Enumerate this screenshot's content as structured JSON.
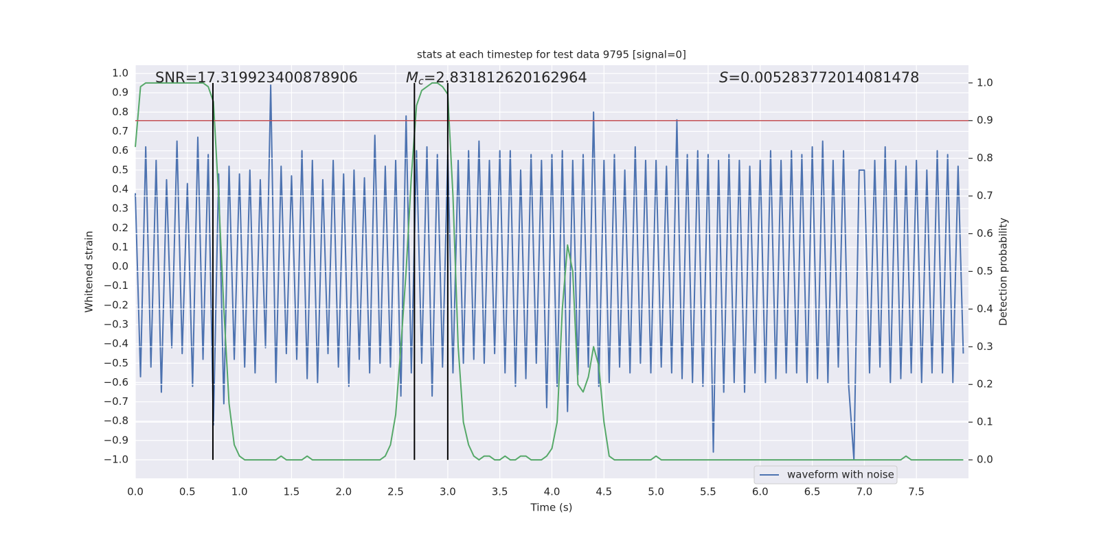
{
  "chart_data": {
    "type": "line",
    "title": "stats at each timestep for test data 9795 [signal=0]",
    "xlabel": "Time (s)",
    "ylabel": "Whitened strain",
    "y2label": "Detection probability",
    "annotations": [
      {
        "text": "SNR=17.319923400878906"
      },
      {
        "symbol": "M",
        "subscript": "c",
        "text": "=2.831812620162964"
      },
      {
        "symbol": "S",
        "text": "=0.005283772014081478"
      }
    ],
    "x": [
      0,
      0.05,
      0.1,
      0.15,
      0.2,
      0.25,
      0.3,
      0.35,
      0.4,
      0.45,
      0.5,
      0.55,
      0.6,
      0.65,
      0.7,
      0.75,
      0.8,
      0.85,
      0.9,
      0.95,
      1.0,
      1.05,
      1.1,
      1.15,
      1.2,
      1.25,
      1.3,
      1.35,
      1.4,
      1.45,
      1.5,
      1.55,
      1.6,
      1.65,
      1.7,
      1.75,
      1.8,
      1.85,
      1.9,
      1.95,
      2.0,
      2.05,
      2.1,
      2.15,
      2.2,
      2.25,
      2.3,
      2.35,
      2.4,
      2.45,
      2.5,
      2.55,
      2.6,
      2.65,
      2.7,
      2.75,
      2.8,
      2.85,
      2.9,
      2.95,
      3.0,
      3.05,
      3.1,
      3.15,
      3.2,
      3.25,
      3.3,
      3.35,
      3.4,
      3.45,
      3.5,
      3.55,
      3.6,
      3.65,
      3.7,
      3.75,
      3.8,
      3.85,
      3.9,
      3.95,
      4.0,
      4.05,
      4.1,
      4.15,
      4.2,
      4.25,
      4.3,
      4.35,
      4.4,
      4.45,
      4.5,
      4.55,
      4.6,
      4.65,
      4.7,
      4.75,
      4.8,
      4.85,
      4.9,
      4.95,
      5.0,
      5.05,
      5.1,
      5.15,
      5.2,
      5.25,
      5.3,
      5.35,
      5.4,
      5.45,
      5.5,
      5.55,
      5.6,
      5.65,
      5.7,
      5.75,
      5.8,
      5.85,
      5.9,
      5.95,
      6.0,
      6.05,
      6.1,
      6.15,
      6.2,
      6.25,
      6.3,
      6.35,
      6.4,
      6.45,
      6.5,
      6.55,
      6.6,
      6.65,
      6.7,
      6.75,
      6.8,
      6.85,
      6.9,
      6.95,
      7.0,
      7.05,
      7.1,
      7.15,
      7.2,
      7.25,
      7.3,
      7.35,
      7.4,
      7.45,
      7.5,
      7.55,
      7.6,
      7.65,
      7.7,
      7.75,
      7.8,
      7.85,
      7.9,
      7.95
    ],
    "series": [
      {
        "name": "waveform with noise",
        "color": "#4c72b0",
        "values": [
          0.38,
          -0.57,
          0.62,
          -0.52,
          0.55,
          -0.65,
          0.45,
          -0.42,
          0.65,
          -0.45,
          0.43,
          -0.62,
          0.67,
          -0.48,
          0.58,
          -0.82,
          0.48,
          -0.71,
          0.52,
          -0.48,
          0.48,
          -0.52,
          0.5,
          -0.55,
          0.45,
          -0.42,
          0.94,
          -0.6,
          0.52,
          -0.45,
          0.47,
          -0.48,
          0.6,
          -0.58,
          0.55,
          -0.6,
          0.45,
          -0.45,
          0.55,
          -0.52,
          0.48,
          -0.62,
          0.5,
          -0.48,
          0.46,
          -0.55,
          0.68,
          -0.5,
          0.52,
          -0.52,
          0.55,
          -0.67,
          0.78,
          -0.55,
          0.6,
          -0.5,
          0.62,
          -0.67,
          0.58,
          -0.52,
          0.58,
          -0.55,
          0.55,
          -0.5,
          0.6,
          -0.48,
          0.65,
          -0.5,
          0.55,
          -0.45,
          0.6,
          -0.55,
          0.6,
          -0.62,
          0.5,
          -0.58,
          0.58,
          -0.5,
          0.55,
          -0.73,
          0.58,
          -0.62,
          0.6,
          -0.75,
          0.55,
          -0.56,
          0.58,
          -0.52,
          0.8,
          -0.62,
          0.55,
          -0.6,
          0.58,
          -0.52,
          0.5,
          -0.55,
          0.62,
          -0.5,
          0.55,
          -0.55,
          0.55,
          -0.52,
          0.52,
          -0.55,
          0.76,
          -0.58,
          0.58,
          -0.6,
          0.6,
          -0.62,
          0.58,
          -0.96,
          0.55,
          -0.65,
          0.58,
          -0.6,
          0.55,
          -0.65,
          0.52,
          -0.55,
          0.55,
          -0.6,
          0.6,
          -0.58,
          0.55,
          -0.55,
          0.6,
          -0.55,
          0.58,
          -0.6,
          0.62,
          -0.58,
          0.65,
          -0.6,
          0.55,
          -0.52,
          0.6,
          -0.62,
          -1.0,
          0.5,
          0.5,
          -0.55,
          0.55,
          -0.52,
          0.62,
          -0.6,
          0.55,
          -0.58,
          0.52,
          -0.55,
          0.55,
          -0.6,
          0.5,
          -0.55,
          0.6,
          -0.55,
          0.58,
          -0.6,
          0.52,
          -0.45
        ]
      },
      {
        "color": "#55a868",
        "axis": "y2",
        "values": [
          0.83,
          0.99,
          1.0,
          1.0,
          1.0,
          1.0,
          1.0,
          1.0,
          1.0,
          1.0,
          1.0,
          1.0,
          1.0,
          1.0,
          0.99,
          0.95,
          0.7,
          0.4,
          0.15,
          0.04,
          0.01,
          0.0,
          0.0,
          0.0,
          0.0,
          0.0,
          0.0,
          0.0,
          0.01,
          0.0,
          0.0,
          0.0,
          0.0,
          0.01,
          0.0,
          0.0,
          0.0,
          0.0,
          0.0,
          0.0,
          0.0,
          0.0,
          0.0,
          0.0,
          0.0,
          0.0,
          0.0,
          0.0,
          0.01,
          0.04,
          0.12,
          0.3,
          0.5,
          0.75,
          0.94,
          0.98,
          0.99,
          1.0,
          1.0,
          0.99,
          0.97,
          0.7,
          0.3,
          0.1,
          0.04,
          0.01,
          0.0,
          0.01,
          0.01,
          0.0,
          0.0,
          0.01,
          0.0,
          0.0,
          0.01,
          0.01,
          0.0,
          0.0,
          0.0,
          0.01,
          0.03,
          0.1,
          0.4,
          0.57,
          0.5,
          0.2,
          0.18,
          0.22,
          0.3,
          0.25,
          0.1,
          0.01,
          0.0,
          0.0,
          0.0,
          0.0,
          0.0,
          0.0,
          0.0,
          0.0,
          0.01,
          0.0,
          0.0,
          0.0,
          0.0,
          0.0,
          0.0,
          0.0,
          0.0,
          0.0,
          0.0,
          0.0,
          0.0,
          0.0,
          0.0,
          0.0,
          0.0,
          0.0,
          0.0,
          0.0,
          0.0,
          0.0,
          0.0,
          0.0,
          0.0,
          0.0,
          0.0,
          0.0,
          0.0,
          0.0,
          0.0,
          0.0,
          0.0,
          0.0,
          0.0,
          0.0,
          0.0,
          0.0,
          0.0,
          0.0,
          0.0,
          0.0,
          0.0,
          0.0,
          0.0,
          0.0,
          0.0,
          0.0,
          0.01,
          0.0,
          0.0,
          0.0,
          0.0,
          0.0,
          0.0,
          0.0,
          0.0,
          0.0,
          0.0,
          0.0
        ]
      }
    ],
    "threshold": {
      "y": 0.9,
      "axis": "y2",
      "color": "#c44e52"
    },
    "vlines": {
      "x": [
        0.745,
        2.68,
        3.0
      ],
      "ymin": 0,
      "ymax": 1,
      "axis": "y2",
      "color": "#000000"
    },
    "xlim": [
      0,
      8.0
    ],
    "xticks": [
      {
        "value": 0,
        "label": "0.0"
      },
      0.5,
      {
        "value": 1,
        "label": "1.0"
      },
      1.5,
      {
        "value": 2,
        "label": "2.0"
      },
      2.5,
      {
        "value": 3,
        "label": "3.0"
      },
      3.5,
      {
        "value": 4,
        "label": "4.0"
      },
      4.5,
      {
        "value": 5,
        "label": "5.0"
      },
      5.5,
      {
        "value": 6,
        "label": "6.0"
      },
      6.5,
      {
        "value": 7,
        "label": "7.0"
      },
      7.5
    ],
    "ylim": [
      -1.096,
      1.043
    ],
    "yticks": [
      {
        "value": -1,
        "label": "−1.0"
      },
      {
        "value": -0.9,
        "label": "−0.9"
      },
      {
        "value": -0.8,
        "label": "−0.8"
      },
      {
        "value": -0.7,
        "label": "−0.7"
      },
      {
        "value": -0.6,
        "label": "−0.6"
      },
      {
        "value": -0.5,
        "label": "−0.5"
      },
      {
        "value": -0.4,
        "label": "−0.4"
      },
      {
        "value": -0.3,
        "label": "−0.3"
      },
      {
        "value": -0.2,
        "label": "−0.2"
      },
      {
        "value": -0.1,
        "label": "−0.1"
      },
      {
        "value": 0,
        "label": "0.0"
      },
      0.1,
      0.2,
      0.3,
      0.4,
      0.5,
      0.6,
      0.7,
      0.8,
      0.9,
      {
        "value": 1,
        "label": "1.0"
      }
    ],
    "y2lim": [
      -0.049,
      1.047
    ],
    "y2ticks": [
      {
        "value": 0,
        "label": "0.0"
      },
      0.1,
      0.2,
      0.3,
      0.4,
      0.5,
      0.6,
      0.7,
      0.8,
      0.9,
      {
        "value": 1,
        "label": "1.0"
      }
    ],
    "grid": true,
    "legend": "lower right"
  }
}
